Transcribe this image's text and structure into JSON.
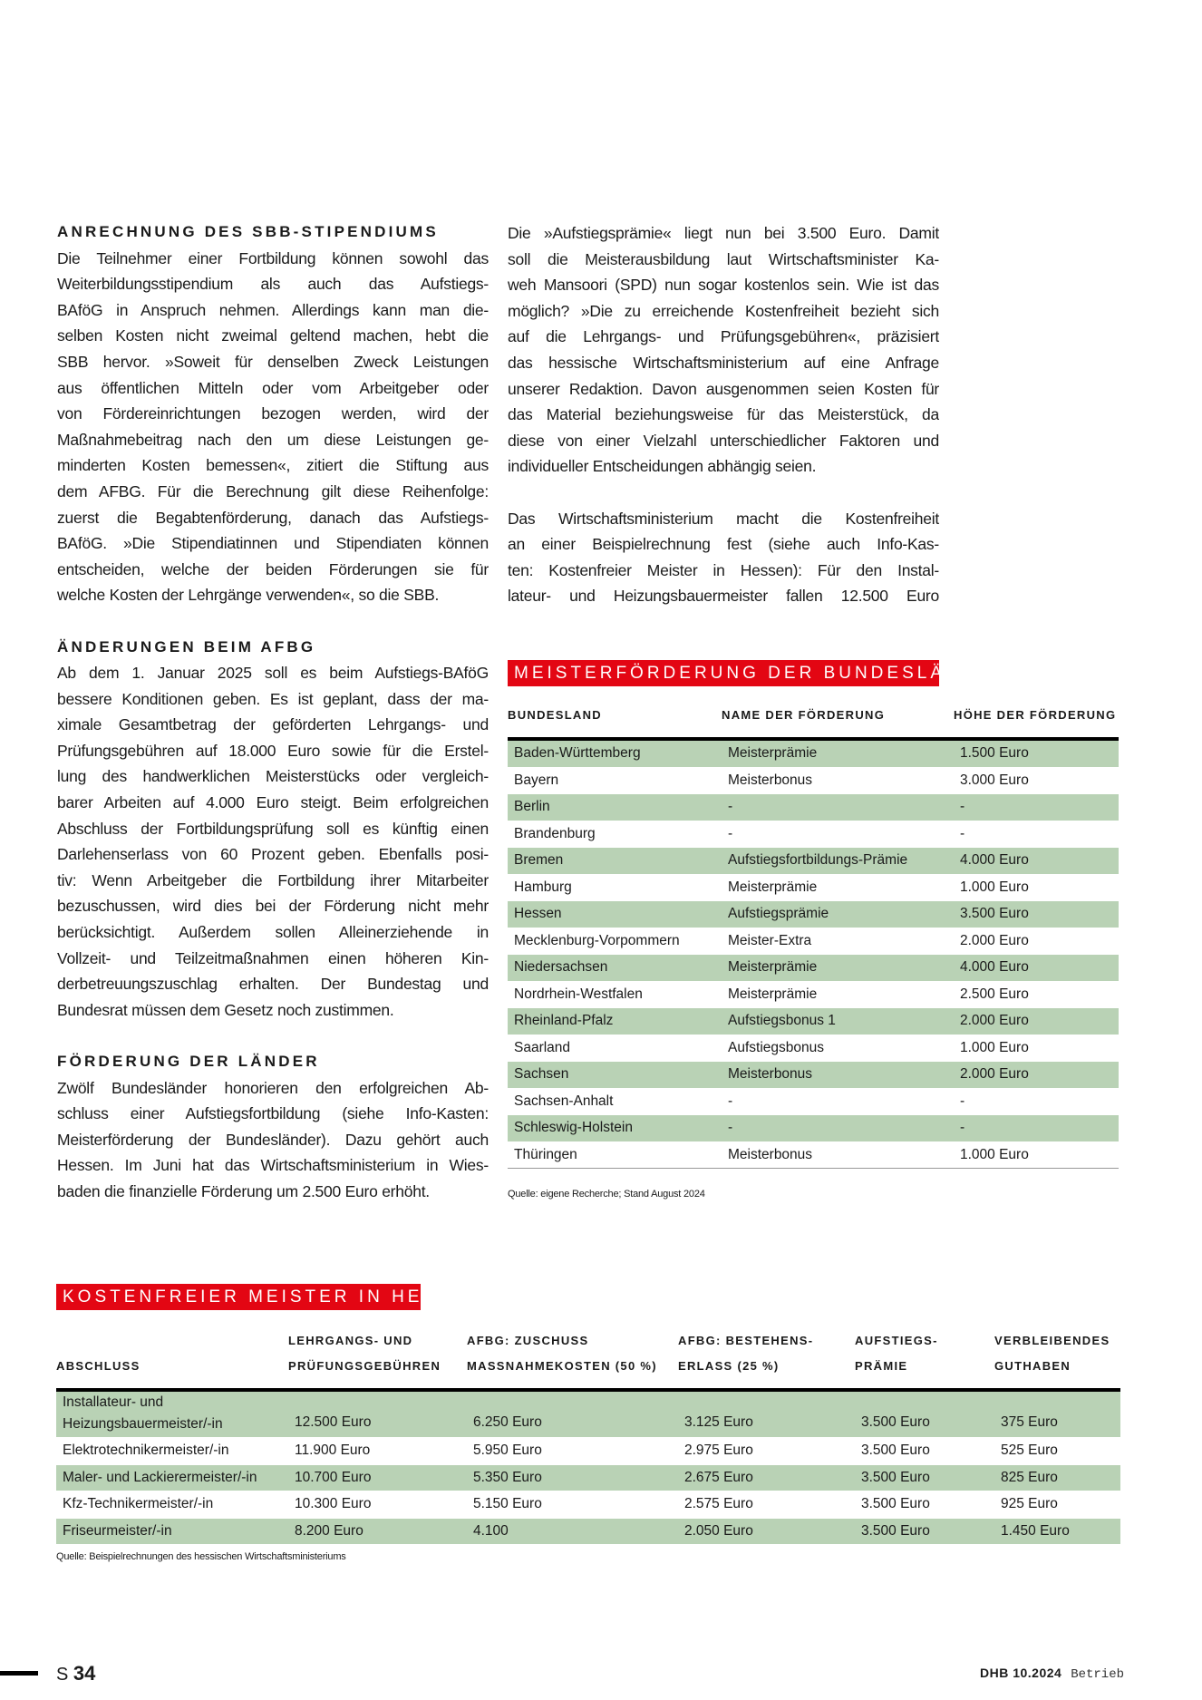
{
  "left": {
    "sections": [
      {
        "heading": "ANRECHNUNG DES SBB-STIPENDIUMS",
        "lines": [
          "Die Teilnehmer einer Fortbildung können sowohl das",
          "Weiterbildungsstipendium als auch das Aufstiegs-",
          "BAföG in Anspruch nehmen. Allerdings kann man die-",
          "selben Kosten nicht zweimal geltend machen, hebt die",
          "SBB hervor. »Soweit für denselben Zweck Leistungen",
          "aus öffentlichen Mitteln oder vom Arbeitgeber oder",
          "von Fördereinrichtungen bezogen werden, wird der",
          "Maßnahmebeitrag nach den um diese Leistungen ge-",
          "minderten Kosten bemessen«, zitiert die Stiftung aus",
          "dem AFBG. Für die Berechnung gilt diese Reihenfolge:",
          "zuerst die Begabtenförderung, danach das Aufstiegs-",
          "BAföG. »Die Stipendiatinnen und Stipendiaten können",
          "entscheiden, welche der beiden Förderungen sie für",
          "welche Kosten der Lehrgänge verwenden«, so die SBB."
        ]
      },
      {
        "heading": "ÄNDERUNGEN BEIM AFBG",
        "lines": [
          "Ab dem 1. Januar 2025 soll es beim Aufstiegs-BAföG",
          "bessere Konditionen geben. Es ist geplant, dass der ma-",
          "ximale Gesamtbetrag der geförderten Lehrgangs- und",
          "Prüfungsgebühren auf 18.000 Euro sowie für die Erstel-",
          "lung des handwerklichen Meisterstücks oder vergleich-",
          "barer Arbeiten auf 4.000 Euro steigt. Beim erfolgreichen",
          "Abschluss der Fortbildungsprüfung soll es künftig einen",
          "Darlehenserlass von 60 Prozent geben. Ebenfalls posi-",
          "tiv: Wenn Arbeitgeber die Fortbildung ihrer Mitarbeiter",
          "bezuschussen, wird dies bei der Förderung nicht mehr",
          "berücksichtigt. Außerdem sollen Alleinerziehende in",
          "Vollzeit- und Teilzeitmaßnahmen einen höheren Kin-",
          "derbetreuungszuschlag erhalten. Der Bundestag und",
          "Bundesrat müssen dem Gesetz noch zustimmen."
        ]
      },
      {
        "heading": "FÖRDERUNG DER LÄNDER",
        "lines": [
          "Zwölf Bundesländer honorieren den erfolgreichen Ab-",
          "schluss einer Aufstiegsfortbildung (siehe Info-Kasten:",
          "Meisterförderung der Bundesländer). Dazu gehört auch",
          "Hessen. Im Juni hat das Wirtschaftsministerium in Wies-",
          "baden die finanzielle Förderung um 2.500 Euro erhöht."
        ]
      }
    ]
  },
  "right": {
    "paragraphs": [
      [
        "Die »Aufstiegsprämie« liegt nun bei 3.500 Euro. Damit",
        "soll die Meisterausbildung laut Wirtschaftsminister Ka-",
        "weh Mansoori (SPD) nun sogar kostenlos sein. Wie ist das",
        "möglich? »Die zu erreichende Kostenfreiheit bezieht sich",
        "auf die Lehrgangs- und Prüfungsgebühren«, präzisiert",
        "das hessische Wirtschaftsministerium auf eine Anfrage",
        "unserer Redaktion. Davon ausgenommen seien Kosten für",
        "das Material beziehungsweise für das Meisterstück, da",
        "diese von einer Vielzahl unterschiedlicher Faktoren und",
        "individueller Entscheidungen abhängig seien."
      ],
      [
        "Das Wirtschaftsministerium macht die Kostenfreiheit",
        "an einer Beispielrechnung fest (siehe auch Info-Kas-",
        "ten: Kostenfreier Meister in Hessen): Für den Instal-",
        "lateur- und Heizungsbauermeister fallen 12.500 Euro"
      ]
    ]
  },
  "table1": {
    "title": "MEISTERFÖRDERUNG DER BUNDESLÄNDER",
    "headers": [
      "BUNDESLAND",
      "NAME DER FÖRDERUNG",
      "HÖHE DER FÖRDERUNG"
    ],
    "rows": [
      [
        "Baden-Württemberg",
        "Meisterprämie",
        "1.500 Euro"
      ],
      [
        "Bayern",
        "Meisterbonus",
        "3.000 Euro"
      ],
      [
        "Berlin",
        "-",
        "-"
      ],
      [
        "Brandenburg",
        "-",
        "-"
      ],
      [
        "Bremen",
        "Aufstiegsfortbildungs-Prämie",
        "4.000 Euro"
      ],
      [
        "Hamburg",
        "Meisterprämie",
        "1.000 Euro"
      ],
      [
        "Hessen",
        "Aufstiegsprämie",
        "3.500 Euro"
      ],
      [
        "Mecklenburg-Vorpommern",
        "Meister-Extra",
        "2.000 Euro"
      ],
      [
        "Niedersachsen",
        "Meisterprämie",
        "4.000 Euro"
      ],
      [
        "Nordrhein-Westfalen",
        "Meisterprämie",
        "2.500 Euro"
      ],
      [
        "Rheinland-Pfalz",
        "Aufstiegsbonus 1",
        "2.000 Euro"
      ],
      [
        "Saarland",
        "Aufstiegsbonus",
        "1.000 Euro"
      ],
      [
        "Sachsen",
        "Meisterbonus",
        "2.000 Euro"
      ],
      [
        "Sachsen-Anhalt",
        "-",
        "-"
      ],
      [
        "Schleswig-Holstein",
        "-",
        "-"
      ],
      [
        "Thüringen",
        "Meisterbonus",
        "1.000 Euro"
      ]
    ],
    "source": "Quelle: eigene Recherche; Stand August 2024"
  },
  "table2": {
    "title": "KOSTENFREIER MEISTER IN HESSEN",
    "headers": [
      [
        "",
        "ABSCHLUSS"
      ],
      [
        "LEHRGANGS- UND",
        "PRÜFUNGSGEBÜHREN"
      ],
      [
        "AFBG: ZUSCHUSS",
        "MASSNAHMEKOSTEN (50 %)"
      ],
      [
        "AFBG: BESTEHENS-",
        "ERLASS (25 %)"
      ],
      [
        "AUFSTIEGS-",
        "PRÄMIE"
      ],
      [
        "VERBLEIBENDES",
        "GUTHABEN"
      ]
    ],
    "rows": [
      [
        [
          "Installateur- und",
          "Heizungsbauermeister/-in"
        ],
        "12.500 Euro",
        "6.250 Euro",
        "3.125 Euro",
        "3.500 Euro",
        "375 Euro"
      ],
      [
        "Elektrotechnikermeister/-in",
        "11.900 Euro",
        "5.950 Euro",
        "2.975 Euro",
        "3.500 Euro",
        "525 Euro"
      ],
      [
        "Maler- und Lackierermeister/-in",
        "10.700 Euro",
        "5.350 Euro",
        "2.675 Euro",
        "3.500 Euro",
        "825 Euro"
      ],
      [
        "Kfz-Technikermeister/-in",
        "10.300 Euro",
        "5.150 Euro",
        "2.575 Euro",
        "3.500 Euro",
        "925 Euro"
      ],
      [
        "Friseurmeister/-in",
        "8.200 Euro",
        "4.100",
        "2.050 Euro",
        "3.500 Euro",
        "1.450 Euro"
      ]
    ],
    "source": "Quelle: Beispielrechnungen des hessischen Wirtschaftsministeriums"
  },
  "footer": {
    "page_prefix": "S",
    "page_number": "34",
    "magazine": "DHB 10.2024",
    "section": "Betrieb"
  },
  "colors": {
    "accent_red": "#e30613",
    "row_green": "#b9d2b5"
  }
}
